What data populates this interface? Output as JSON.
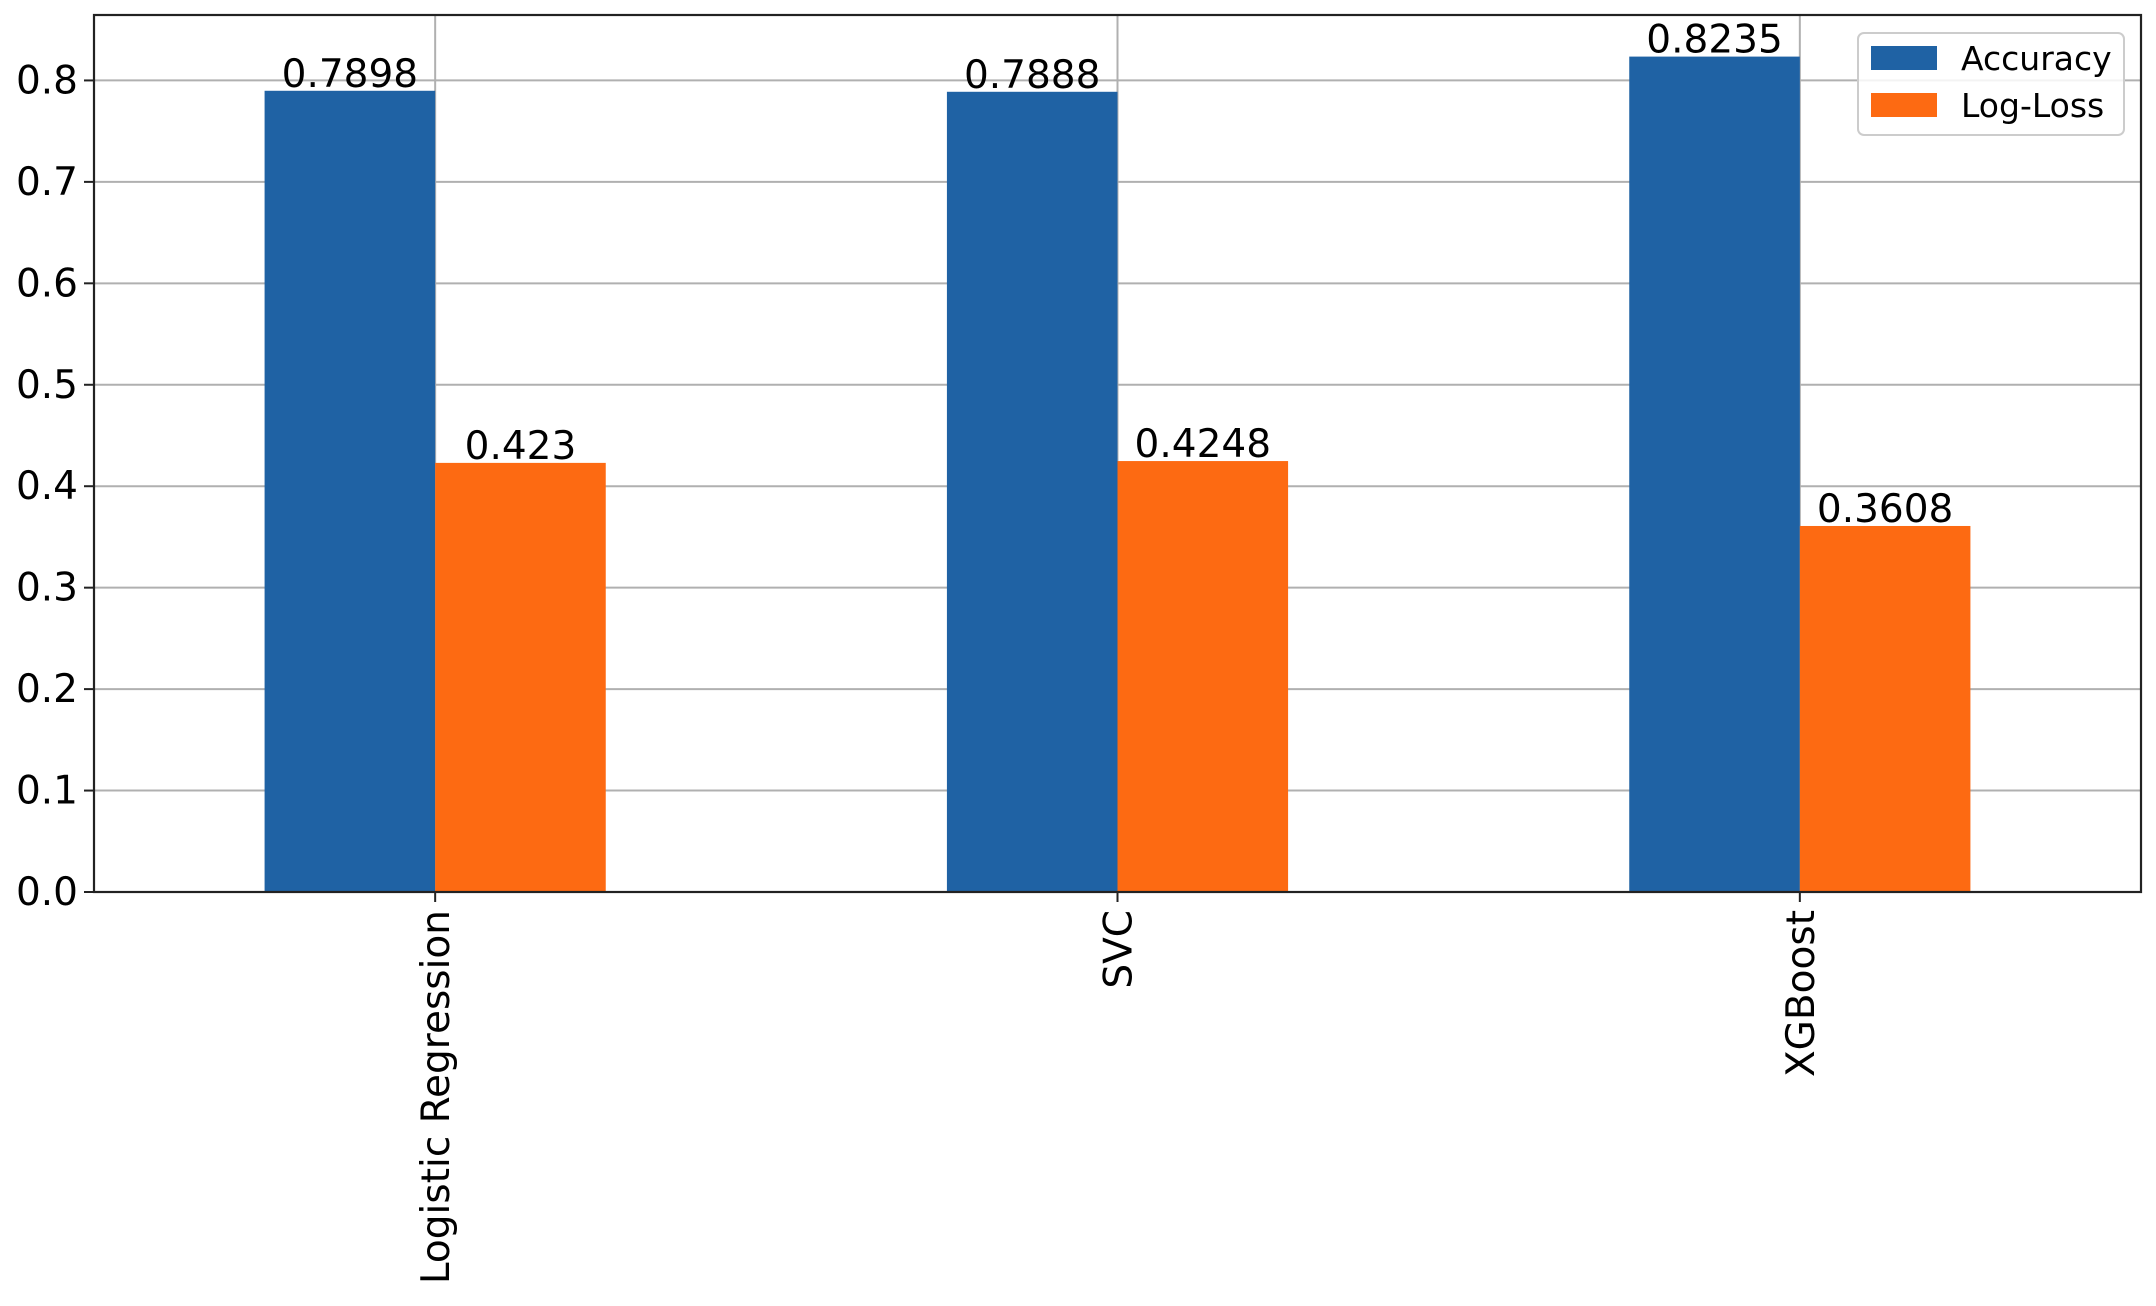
{
  "chart_data": {
    "type": "bar",
    "title": "",
    "xlabel": "",
    "ylabel": "",
    "categories": [
      "Logistic Regression",
      "SVC",
      "XGBoost"
    ],
    "series": [
      {
        "name": "Accuracy",
        "values": [
          0.7898,
          0.7888,
          0.8235
        ],
        "labels": [
          "0.7898",
          "0.7888",
          "0.8235"
        ],
        "color": "#1f62a4"
      },
      {
        "name": "Log-Loss",
        "values": [
          0.423,
          0.4248,
          0.3608
        ],
        "labels": [
          "0.423",
          "0.4248",
          "0.3608"
        ],
        "color": "#fd6a12"
      }
    ],
    "ylim": [
      0,
      0.8645
    ],
    "yticks": [
      0.0,
      0.1,
      0.2,
      0.3,
      0.4,
      0.5,
      0.6,
      0.7,
      0.8
    ],
    "ytick_labels": [
      "0.0",
      "0.1",
      "0.2",
      "0.3",
      "0.4",
      "0.5",
      "0.6",
      "0.7",
      "0.8"
    ],
    "grid": true,
    "legend_position": "top-right",
    "xtick_rotation": "vertical"
  }
}
